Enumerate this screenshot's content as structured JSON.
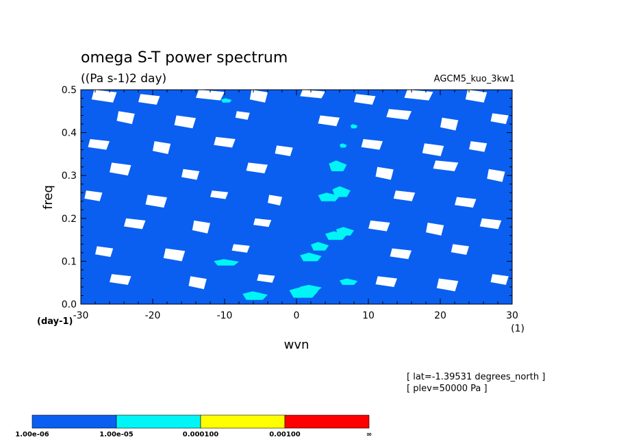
{
  "chart_data": {
    "type": "heatmap",
    "title": "omega S-T power spectrum",
    "subtitle": "((Pa s-1)2 day)",
    "run_label": "AGCM5_kuo_3kw1",
    "xlabel": "wvn",
    "xunit": "(1)",
    "ylabel": "freq",
    "yunit": "(day-1)",
    "xlim": [
      -30,
      30
    ],
    "ylim": [
      0.0,
      0.5
    ],
    "xticks": [
      "-30",
      "-20",
      "-10",
      "0",
      "10",
      "20",
      "30"
    ],
    "xtick_values": [
      -30,
      -20,
      -10,
      0,
      10,
      20,
      30
    ],
    "yticks": [
      "0.0",
      "0.1",
      "0.2",
      "0.3",
      "0.4",
      "0.5"
    ],
    "ytick_values": [
      0.0,
      0.1,
      0.2,
      0.3,
      0.4,
      0.5
    ],
    "info_lines": [
      "[ lat=-1.39531 degrees_north ]",
      "[ plev=50000 Pa ]"
    ],
    "levels": [
      {
        "label": "1.00e-06",
        "color": "#0a5ff0"
      },
      {
        "label": "1.00e-05",
        "color": "#00f6f6"
      },
      {
        "label": "0.000100",
        "color": "#ffff00"
      },
      {
        "label": "0.00100",
        "color": "#ff0000"
      },
      {
        "label": "∞",
        "color": ""
      }
    ],
    "field": {
      "background_color": "#0a5ff0",
      "below_min_color": "#ffffff",
      "high_color": "#00f6f6",
      "below_min_regions": [
        {
          "x": -28.5,
          "y": 0.47,
          "w": 3.5,
          "h": 0.03
        },
        {
          "x": -22,
          "y": 0.465,
          "w": 3,
          "h": 0.025
        },
        {
          "x": -14,
          "y": 0.475,
          "w": 4,
          "h": 0.025
        },
        {
          "x": -6.5,
          "y": 0.47,
          "w": 2.5,
          "h": 0.03
        },
        {
          "x": 0.5,
          "y": 0.48,
          "w": 3.5,
          "h": 0.02
        },
        {
          "x": 8,
          "y": 0.465,
          "w": 3,
          "h": 0.025
        },
        {
          "x": 15,
          "y": 0.475,
          "w": 4,
          "h": 0.025
        },
        {
          "x": 23.5,
          "y": 0.47,
          "w": 3,
          "h": 0.03
        },
        {
          "x": -25,
          "y": 0.42,
          "w": 2.5,
          "h": 0.03
        },
        {
          "x": -17,
          "y": 0.41,
          "w": 3,
          "h": 0.03
        },
        {
          "x": -8.5,
          "y": 0.43,
          "w": 2,
          "h": 0.02
        },
        {
          "x": 3,
          "y": 0.415,
          "w": 3,
          "h": 0.025
        },
        {
          "x": 12.5,
          "y": 0.43,
          "w": 3.5,
          "h": 0.025
        },
        {
          "x": 20,
          "y": 0.405,
          "w": 2.5,
          "h": 0.03
        },
        {
          "x": 27,
          "y": 0.42,
          "w": 2.5,
          "h": 0.025
        },
        {
          "x": -29,
          "y": 0.36,
          "w": 3,
          "h": 0.025
        },
        {
          "x": -20,
          "y": 0.35,
          "w": 2.5,
          "h": 0.03
        },
        {
          "x": -11.5,
          "y": 0.365,
          "w": 3,
          "h": 0.025
        },
        {
          "x": -3,
          "y": 0.345,
          "w": 2.5,
          "h": 0.025
        },
        {
          "x": 9,
          "y": 0.36,
          "w": 3,
          "h": 0.025
        },
        {
          "x": 17.5,
          "y": 0.345,
          "w": 3,
          "h": 0.03
        },
        {
          "x": 24,
          "y": 0.355,
          "w": 2.5,
          "h": 0.025
        },
        {
          "x": -26,
          "y": 0.3,
          "w": 3,
          "h": 0.03
        },
        {
          "x": -16,
          "y": 0.29,
          "w": 2.5,
          "h": 0.025
        },
        {
          "x": -7,
          "y": 0.305,
          "w": 3,
          "h": 0.025
        },
        {
          "x": 11,
          "y": 0.29,
          "w": 2.5,
          "h": 0.03
        },
        {
          "x": 19,
          "y": 0.31,
          "w": 3.5,
          "h": 0.025
        },
        {
          "x": 26.5,
          "y": 0.285,
          "w": 2.5,
          "h": 0.03
        },
        {
          "x": -29.5,
          "y": 0.24,
          "w": 2.5,
          "h": 0.025
        },
        {
          "x": -21,
          "y": 0.225,
          "w": 3,
          "h": 0.03
        },
        {
          "x": -12,
          "y": 0.245,
          "w": 2.5,
          "h": 0.02
        },
        {
          "x": -4,
          "y": 0.23,
          "w": 2,
          "h": 0.025
        },
        {
          "x": 13.5,
          "y": 0.24,
          "w": 3,
          "h": 0.025
        },
        {
          "x": 22,
          "y": 0.225,
          "w": 3,
          "h": 0.025
        },
        {
          "x": -24,
          "y": 0.175,
          "w": 3,
          "h": 0.025
        },
        {
          "x": -14.5,
          "y": 0.165,
          "w": 2.5,
          "h": 0.03
        },
        {
          "x": -6,
          "y": 0.18,
          "w": 2.5,
          "h": 0.02
        },
        {
          "x": 10,
          "y": 0.17,
          "w": 3,
          "h": 0.025
        },
        {
          "x": 18,
          "y": 0.16,
          "w": 2.5,
          "h": 0.03
        },
        {
          "x": 25.5,
          "y": 0.175,
          "w": 3,
          "h": 0.025
        },
        {
          "x": -28,
          "y": 0.11,
          "w": 2.5,
          "h": 0.025
        },
        {
          "x": -18.5,
          "y": 0.1,
          "w": 3,
          "h": 0.03
        },
        {
          "x": -9,
          "y": 0.12,
          "w": 2.5,
          "h": 0.02
        },
        {
          "x": 13,
          "y": 0.105,
          "w": 3,
          "h": 0.025
        },
        {
          "x": 21.5,
          "y": 0.115,
          "w": 2.5,
          "h": 0.025
        },
        {
          "x": -26,
          "y": 0.045,
          "w": 3,
          "h": 0.025
        },
        {
          "x": -15,
          "y": 0.035,
          "w": 2.5,
          "h": 0.03
        },
        {
          "x": -5.5,
          "y": 0.05,
          "w": 2.5,
          "h": 0.02
        },
        {
          "x": 11,
          "y": 0.04,
          "w": 3,
          "h": 0.025
        },
        {
          "x": 19.5,
          "y": 0.03,
          "w": 3,
          "h": 0.03
        },
        {
          "x": 27,
          "y": 0.045,
          "w": 2.5,
          "h": 0.025
        }
      ],
      "high_regions": [
        {
          "x": 4.5,
          "y": 0.31,
          "w": 2.5,
          "h": 0.025
        },
        {
          "x": 3,
          "y": 0.24,
          "w": 3,
          "h": 0.02
        },
        {
          "x": 5,
          "y": 0.25,
          "w": 2.5,
          "h": 0.025
        },
        {
          "x": 4,
          "y": 0.15,
          "w": 3,
          "h": 0.02
        },
        {
          "x": 5.5,
          "y": 0.16,
          "w": 2.5,
          "h": 0.02
        },
        {
          "x": 2,
          "y": 0.125,
          "w": 2.5,
          "h": 0.02
        },
        {
          "x": 0.5,
          "y": 0.1,
          "w": 3,
          "h": 0.02
        },
        {
          "x": -1,
          "y": 0.015,
          "w": 4,
          "h": 0.025
        },
        {
          "x": 0.5,
          "y": 0.03,
          "w": 3,
          "h": 0.015
        },
        {
          "x": -7.5,
          "y": 0.01,
          "w": 3.5,
          "h": 0.02
        },
        {
          "x": -11.5,
          "y": 0.09,
          "w": 3.5,
          "h": 0.015
        },
        {
          "x": 6,
          "y": 0.045,
          "w": 2.5,
          "h": 0.015
        },
        {
          "x": 6,
          "y": 0.365,
          "w": 1,
          "h": 0.01
        },
        {
          "x": 7.5,
          "y": 0.41,
          "w": 1,
          "h": 0.01
        },
        {
          "x": -10.5,
          "y": 0.47,
          "w": 1.5,
          "h": 0.01
        }
      ]
    }
  }
}
